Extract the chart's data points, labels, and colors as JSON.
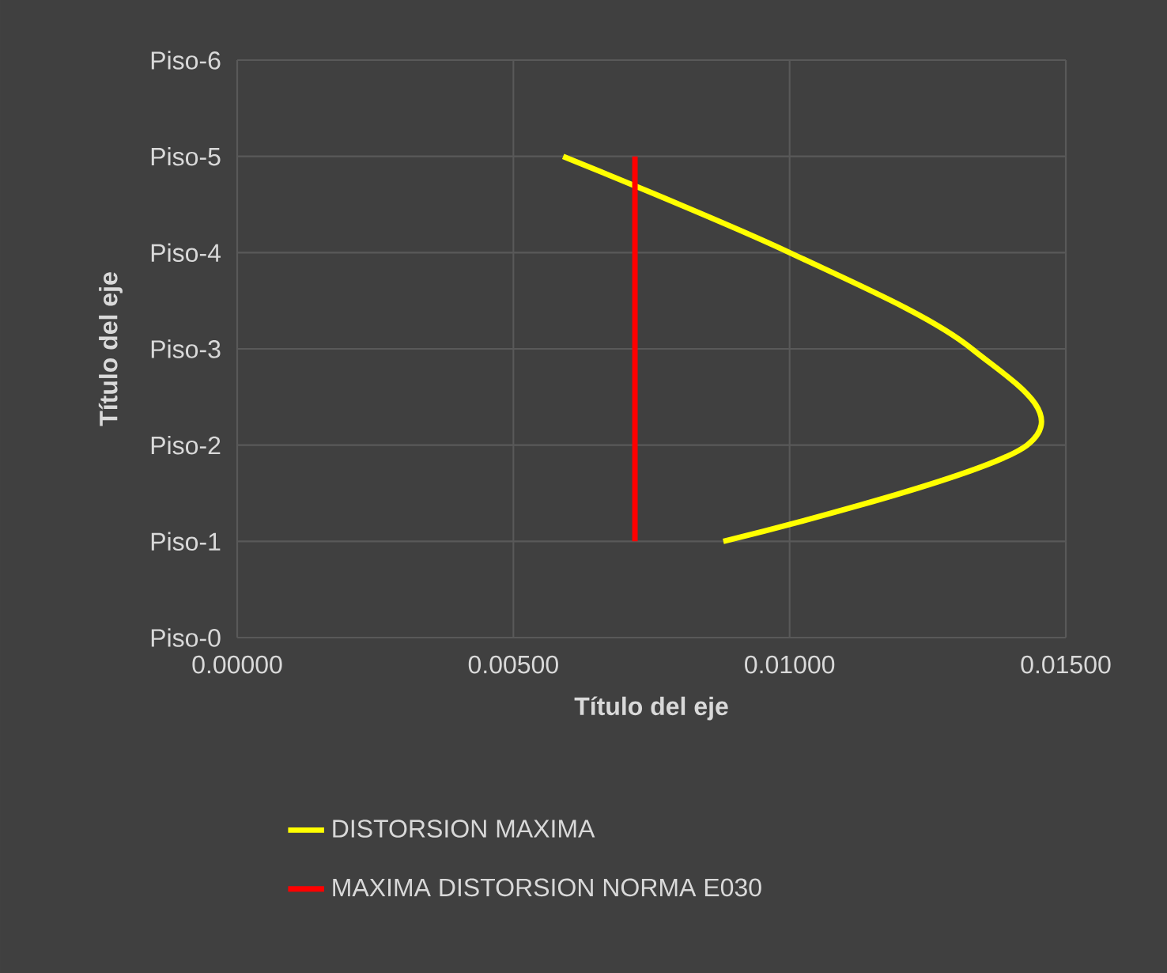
{
  "chart_data": {
    "type": "line",
    "orientation": "horizontal",
    "xlabel": "Título del eje",
    "ylabel": "Título del eje",
    "xlim": [
      0,
      0.015
    ],
    "xticks": [
      {
        "value": 0,
        "label": "0.00000"
      },
      {
        "value": 0.005,
        "label": "0.00500"
      },
      {
        "value": 0.01,
        "label": "0.01000"
      },
      {
        "value": 0.015,
        "label": "0.01500"
      }
    ],
    "categories": [
      "Piso-6",
      "Piso-5",
      "Piso-4",
      "Piso-3",
      "Piso-2",
      "Piso-1",
      "Piso-0"
    ],
    "series": [
      {
        "name": "DISTORSION MAXIMA",
        "color": "#ffff00",
        "values": [
          null,
          0.0059,
          0.01,
          0.0133,
          0.0143,
          0.0088,
          null
        ]
      },
      {
        "name": "MAXIMA DISTORSION NORMA E030",
        "color": "#ff0000",
        "values": [
          null,
          0.0072,
          0.0072,
          0.0072,
          0.0072,
          0.0072,
          null
        ]
      }
    ],
    "grid": true,
    "legend": "bottom",
    "marker": "none",
    "line_style": "solid"
  }
}
